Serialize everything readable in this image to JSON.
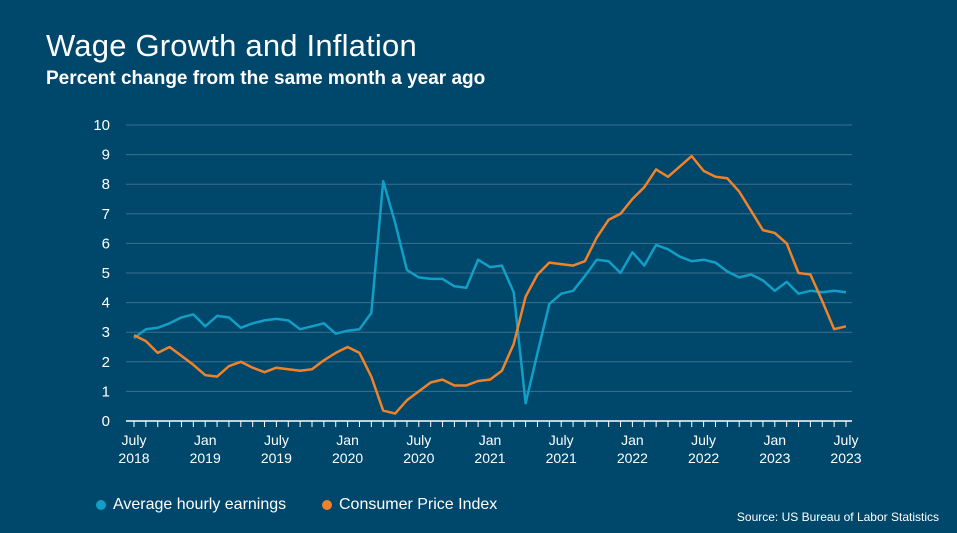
{
  "chart_data": {
    "type": "line",
    "title": "Wage Growth and Inflation",
    "subtitle": "Percent change from the same month a year ago",
    "xlabel": "",
    "ylabel": "",
    "ylim": [
      0,
      10
    ],
    "yticks": [
      "0",
      "1",
      "2",
      "3",
      "4",
      "5",
      "6",
      "7",
      "8",
      "9",
      "10"
    ],
    "grid": true,
    "legend_position": "bottom-left",
    "x_start": "2018-07",
    "x_end": "2023-07",
    "xtick_labels": [
      [
        "July",
        "2018"
      ],
      [
        "Jan",
        "2019"
      ],
      [
        "July",
        "2019"
      ],
      [
        "Jan",
        "2020"
      ],
      [
        "July",
        "2020"
      ],
      [
        "Jan",
        "2021"
      ],
      [
        "July",
        "2021"
      ],
      [
        "Jan",
        "2022"
      ],
      [
        "July",
        "2022"
      ],
      [
        "Jan",
        "2023"
      ],
      [
        "July",
        "2023"
      ]
    ],
    "series": [
      {
        "name": "Average hourly earnings",
        "color": "#119fc6",
        "values": [
          2.8,
          3.1,
          3.15,
          3.3,
          3.5,
          3.6,
          3.2,
          3.55,
          3.5,
          3.15,
          3.3,
          3.4,
          3.45,
          3.4,
          3.1,
          3.2,
          3.3,
          2.95,
          3.05,
          3.1,
          3.65,
          8.1,
          6.7,
          5.1,
          4.85,
          4.8,
          4.8,
          4.55,
          4.5,
          5.45,
          5.2,
          5.25,
          4.35,
          0.6,
          2.3,
          3.95,
          4.3,
          4.4,
          4.9,
          5.45,
          5.4,
          5.0,
          5.7,
          5.25,
          5.95,
          5.8,
          5.55,
          5.4,
          5.45,
          5.35,
          5.05,
          4.85,
          4.95,
          4.75,
          4.4,
          4.7,
          4.3,
          4.4,
          4.35,
          4.4,
          4.35
        ]
      },
      {
        "name": "Consumer Price Index",
        "color": "#f0832a",
        "values": [
          2.9,
          2.7,
          2.3,
          2.5,
          2.2,
          1.9,
          1.55,
          1.5,
          1.85,
          2.0,
          1.8,
          1.65,
          1.8,
          1.75,
          1.7,
          1.75,
          2.05,
          2.3,
          2.5,
          2.3,
          1.5,
          0.35,
          0.25,
          0.7,
          1.0,
          1.3,
          1.4,
          1.2,
          1.2,
          1.35,
          1.4,
          1.7,
          2.6,
          4.2,
          4.95,
          5.35,
          5.3,
          5.25,
          5.4,
          6.2,
          6.8,
          7.0,
          7.5,
          7.9,
          8.5,
          8.25,
          8.6,
          8.95,
          8.45,
          8.25,
          8.2,
          7.75,
          7.1,
          6.45,
          6.35,
          6.0,
          5.0,
          4.95,
          4.05,
          3.1,
          3.2
        ]
      }
    ],
    "source": "Source: US Bureau of Labor Statistics"
  }
}
